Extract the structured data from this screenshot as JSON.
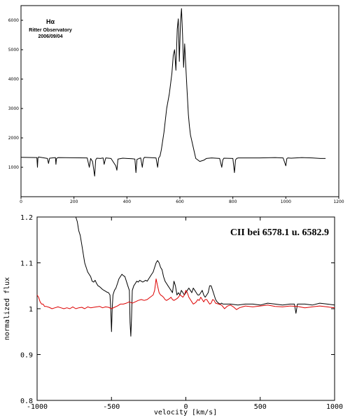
{
  "chart_data": [
    {
      "type": "line",
      "annotation_lines": [
        "Hα",
        "Ritter Observatory",
        "2006/09/04"
      ],
      "xlim": [
        0,
        1200
      ],
      "ylim": [
        0,
        6500
      ],
      "x_ticks": [
        0,
        200,
        400,
        600,
        800,
        1000,
        1200
      ],
      "y_ticks": [
        1000,
        2000,
        3000,
        4000,
        5000,
        6000
      ],
      "grid": false,
      "series": [
        {
          "color": "#000000",
          "baseline": 1340,
          "x": [
            0,
            60,
            62,
            64,
            66,
            100,
            104,
            108,
            130,
            132,
            134,
            140,
            250,
            258,
            263,
            270,
            278,
            282,
            286,
            300,
            310,
            314,
            318,
            320,
            340,
            358,
            362,
            366,
            384,
            400,
            420,
            430,
            434,
            438,
            446,
            452,
            458,
            462,
            466,
            510,
            516,
            520,
            525,
            530,
            540,
            550,
            560,
            570,
            575,
            580,
            585,
            590,
            594,
            598,
            602,
            606,
            610,
            614,
            618,
            622,
            626,
            632,
            636,
            640,
            650,
            660,
            675,
            690,
            700,
            720,
            750,
            758,
            762,
            766,
            800,
            806,
            810,
            814,
            820,
            900,
            960,
            990,
            1000,
            1004,
            1008,
            1020,
            1060,
            1100,
            1130,
            1150
          ],
          "y": [
            1340,
            1330,
            1000,
            1320,
            1350,
            1300,
            1130,
            1310,
            1330,
            1100,
            1300,
            1330,
            1320,
            1000,
            1300,
            1200,
            700,
            1250,
            1310,
            1300,
            1320,
            1100,
            1250,
            1320,
            1300,
            1050,
            900,
            1280,
            1310,
            1300,
            1290,
            1280,
            820,
            1270,
            1300,
            1320,
            1000,
            1280,
            1340,
            1320,
            1000,
            1320,
            1380,
            1600,
            2200,
            3000,
            3500,
            4200,
            4800,
            5000,
            4300,
            5700,
            6050,
            4600,
            5900,
            6400,
            5500,
            4400,
            5200,
            4500,
            3800,
            2800,
            2400,
            2100,
            1700,
            1300,
            1200,
            1240,
            1300,
            1320,
            1300,
            1000,
            1250,
            1310,
            1300,
            820,
            1250,
            1300,
            1320,
            1320,
            1330,
            1320,
            1050,
            1300,
            1320,
            1310,
            1330,
            1320,
            1300,
            1300
          ]
        }
      ]
    },
    {
      "type": "line",
      "annotation": "CII bei 6578.1 u. 6582.9",
      "xlabel": "velocity [km/s]",
      "ylabel": "normalized flux",
      "xlim": [
        -1000,
        1000
      ],
      "ylim": [
        0.8,
        1.2
      ],
      "x_ticks": [
        -1000,
        -500,
        0,
        500,
        1000
      ],
      "y_ticks": [
        0.8,
        0.9,
        1,
        1.1,
        1.2
      ],
      "y_tick_labels": [
        "0.8",
        "0.9",
        "1",
        "1.1",
        "1.2"
      ],
      "grid": false,
      "series": [
        {
          "color": "#000000",
          "x": [
            -740,
            -730,
            -720,
            -710,
            -700,
            -690,
            -680,
            -670,
            -660,
            -650,
            -640,
            -630,
            -620,
            -610,
            -600,
            -590,
            -580,
            -570,
            -560,
            -550,
            -540,
            -530,
            -520,
            -510,
            -505,
            -500,
            -495,
            -490,
            -480,
            -470,
            -460,
            -450,
            -440,
            -430,
            -420,
            -410,
            -400,
            -390,
            -380,
            -375,
            -370,
            -365,
            -360,
            -350,
            -340,
            -330,
            -320,
            -310,
            -300,
            -290,
            -280,
            -270,
            -260,
            -250,
            -240,
            -230,
            -220,
            -210,
            -200,
            -190,
            -180,
            -170,
            -160,
            -150,
            -140,
            -130,
            -120,
            -110,
            -100,
            -90,
            -80,
            -70,
            -60,
            -50,
            -40,
            -30,
            -20,
            -10,
            0,
            10,
            20,
            30,
            40,
            50,
            60,
            70,
            80,
            90,
            100,
            110,
            120,
            130,
            140,
            150,
            160,
            170,
            180,
            190,
            200,
            210,
            220,
            230,
            240,
            250,
            300,
            350,
            400,
            450,
            500,
            550,
            600,
            650,
            700,
            730,
            740,
            750,
            760,
            800,
            850,
            900,
            950,
            1000
          ],
          "y": [
            1.2,
            1.19,
            1.17,
            1.16,
            1.14,
            1.12,
            1.1,
            1.09,
            1.08,
            1.075,
            1.07,
            1.06,
            1.058,
            1.062,
            1.055,
            1.05,
            1.048,
            1.045,
            1.042,
            1.04,
            1.038,
            1.036,
            1.035,
            1.03,
            1.0,
            0.95,
            1.0,
            1.03,
            1.04,
            1.045,
            1.055,
            1.065,
            1.07,
            1.075,
            1.072,
            1.07,
            1.06,
            1.05,
            1.04,
            0.97,
            0.94,
            0.98,
            1.04,
            1.05,
            1.055,
            1.06,
            1.058,
            1.062,
            1.06,
            1.058,
            1.06,
            1.062,
            1.06,
            1.065,
            1.07,
            1.075,
            1.08,
            1.09,
            1.1,
            1.105,
            1.1,
            1.09,
            1.085,
            1.07,
            1.06,
            1.055,
            1.05,
            1.045,
            1.04,
            1.035,
            1.06,
            1.05,
            1.03,
            1.035,
            1.03,
            1.04,
            1.035,
            1.03,
            1.035,
            1.04,
            1.045,
            1.04,
            1.035,
            1.045,
            1.04,
            1.035,
            1.03,
            1.03,
            1.035,
            1.04,
            1.03,
            1.025,
            1.03,
            1.035,
            1.05,
            1.05,
            1.04,
            1.03,
            1.02,
            1.015,
            1.012,
            1.01,
            1.012,
            1.01,
            1.01,
            1.008,
            1.01,
            1.01,
            1.008,
            1.012,
            1.01,
            1.008,
            1.01,
            1.01,
            0.99,
            1.01,
            1.01,
            1.01,
            1.008,
            1.012,
            1.01,
            1.008
          ]
        },
        {
          "color": "#dd0000",
          "x": [
            -1000,
            -990,
            -980,
            -970,
            -960,
            -950,
            -940,
            -920,
            -900,
            -880,
            -860,
            -840,
            -820,
            -800,
            -780,
            -760,
            -740,
            -720,
            -700,
            -680,
            -660,
            -640,
            -620,
            -600,
            -580,
            -560,
            -540,
            -520,
            -500,
            -480,
            -460,
            -440,
            -420,
            -400,
            -380,
            -360,
            -340,
            -320,
            -300,
            -280,
            -260,
            -240,
            -220,
            -210,
            -200,
            -190,
            -180,
            -170,
            -160,
            -150,
            -140,
            -130,
            -120,
            -110,
            -100,
            -90,
            -80,
            -70,
            -60,
            -50,
            -40,
            -30,
            -20,
            -10,
            0,
            10,
            20,
            30,
            40,
            50,
            60,
            70,
            80,
            90,
            100,
            110,
            120,
            130,
            140,
            150,
            160,
            170,
            180,
            190,
            200,
            220,
            240,
            260,
            280,
            300,
            320,
            340,
            360,
            380,
            400,
            450,
            500,
            550,
            600,
            650,
            700,
            750,
            800,
            850,
            900,
            950,
            1000
          ],
          "y": [
            1.03,
            1.025,
            1.015,
            1.01,
            1.01,
            1.005,
            1.005,
            1.003,
            1.0,
            1.002,
            1.004,
            1.002,
            1.0,
            1.002,
            1.0,
            1.004,
            1.0,
            1.002,
            1.003,
            1.0,
            1.004,
            1.002,
            1.003,
            1.004,
            1.005,
            1.002,
            1.004,
            1.003,
            1.0,
            1.003,
            1.006,
            1.01,
            1.01,
            1.012,
            1.015,
            1.012,
            1.015,
            1.018,
            1.02,
            1.018,
            1.02,
            1.025,
            1.03,
            1.04,
            1.065,
            1.05,
            1.035,
            1.03,
            1.028,
            1.025,
            1.02,
            1.018,
            1.02,
            1.022,
            1.025,
            1.02,
            1.018,
            1.02,
            1.022,
            1.025,
            1.03,
            1.028,
            1.025,
            1.03,
            1.04,
            1.035,
            1.025,
            1.02,
            1.015,
            1.01,
            1.012,
            1.015,
            1.02,
            1.018,
            1.025,
            1.02,
            1.015,
            1.02,
            1.02,
            1.015,
            1.01,
            1.012,
            1.02,
            1.018,
            1.012,
            1.01,
            1.008,
            1.0,
            1.006,
            1.008,
            1.004,
            0.998,
            1.002,
            1.004,
            1.006,
            1.004,
            1.006,
            1.008,
            1.005,
            1.004,
            1.006,
            1.005,
            1.002,
            1.004,
            1.006,
            1.004,
            1.002
          ]
        }
      ]
    }
  ]
}
